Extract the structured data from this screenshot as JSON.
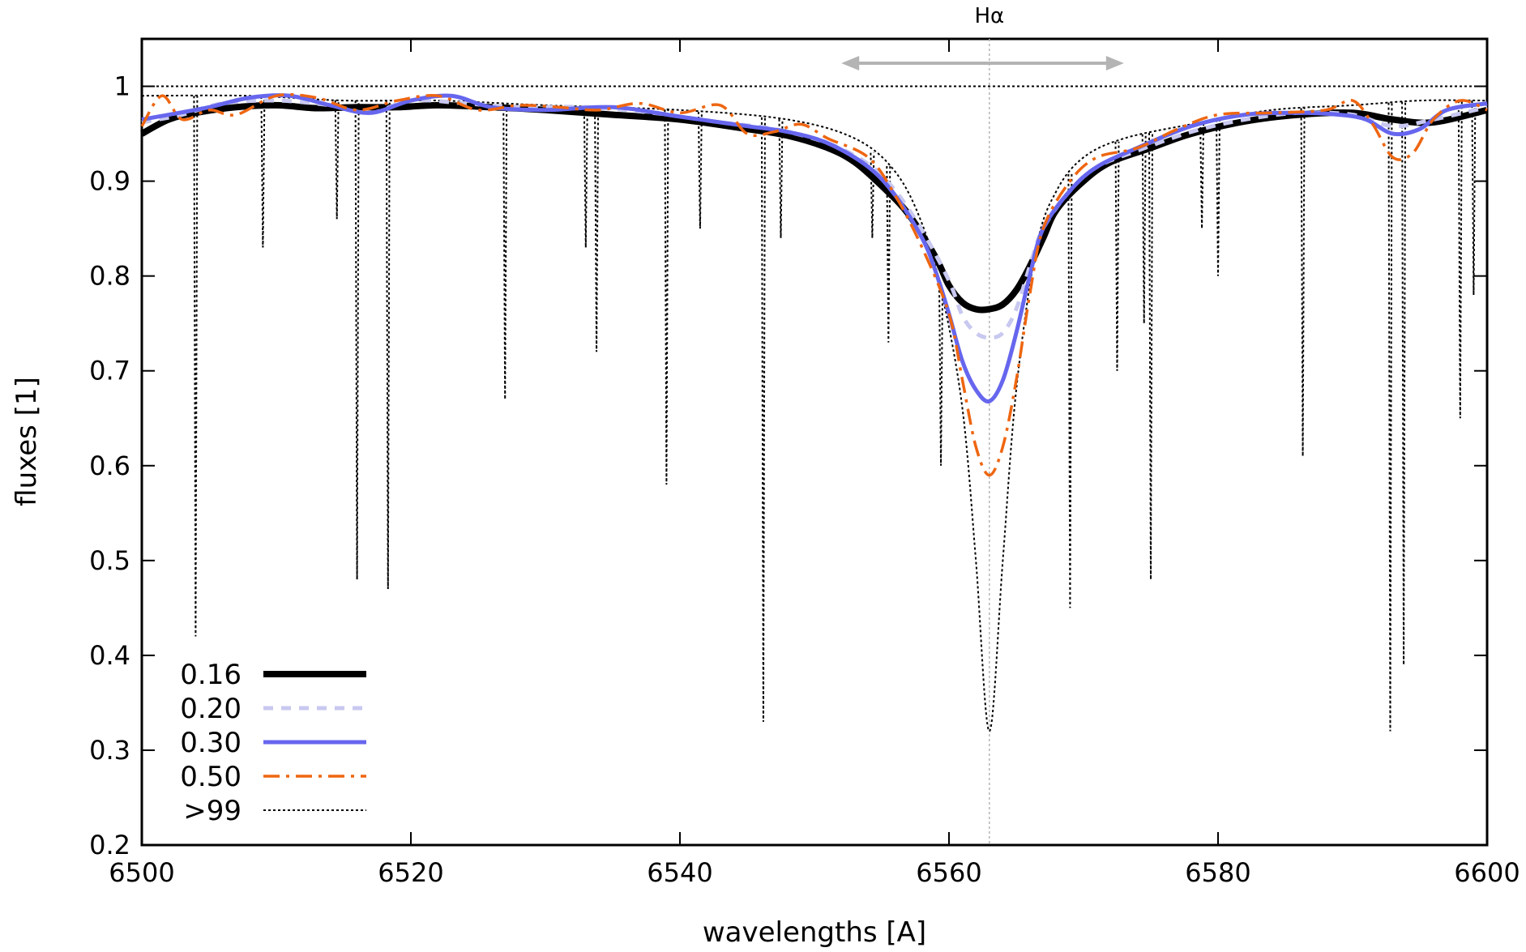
{
  "chart_data": {
    "type": "line",
    "xlabel": "wavelengths [A]",
    "ylabel": "fluxes [1]",
    "xlim": [
      6500,
      6600
    ],
    "ylim": [
      0.2,
      1.05
    ],
    "x_ticks": [
      6500,
      6520,
      6540,
      6560,
      6580,
      6600
    ],
    "x_tick_labels": [
      "6500",
      "6520",
      "6540",
      "6560",
      "6580",
      "6600"
    ],
    "y_ticks": [
      0.2,
      0.3,
      0.4,
      0.5,
      0.6,
      0.7,
      0.8,
      0.9,
      1.0
    ],
    "y_tick_labels": [
      "0.2",
      "0.3",
      "0.4",
      "0.5",
      "0.6",
      "0.7",
      "0.8",
      "0.9",
      "1"
    ],
    "grid": false,
    "legend_position": "bottom-left",
    "annotation": {
      "label": "Hα",
      "line_x": 6563,
      "arrow_from": 6552,
      "arrow_to": 6573
    },
    "series": [
      {
        "name": "0.16",
        "color": "#000000",
        "style": "solid-thick",
        "x": [
          6500,
          6502,
          6504,
          6507,
          6510,
          6513,
          6516,
          6519,
          6522,
          6526,
          6530,
          6535,
          6540,
          6545,
          6548,
          6551,
          6553,
          6555,
          6557,
          6559,
          6560,
          6561,
          6562,
          6563,
          6564,
          6565,
          6566,
          6567,
          6568,
          6570,
          6572,
          6575,
          6578,
          6582,
          6586,
          6590,
          6593,
          6596,
          6600
        ],
        "y": [
          0.95,
          0.965,
          0.972,
          0.978,
          0.98,
          0.977,
          0.978,
          0.978,
          0.98,
          0.978,
          0.975,
          0.97,
          0.965,
          0.955,
          0.948,
          0.935,
          0.92,
          0.895,
          0.865,
          0.82,
          0.79,
          0.772,
          0.765,
          0.765,
          0.77,
          0.785,
          0.81,
          0.84,
          0.87,
          0.9,
          0.92,
          0.935,
          0.95,
          0.963,
          0.97,
          0.972,
          0.965,
          0.962,
          0.975
        ]
      },
      {
        "name": "0.20",
        "color": "#c8c8f0",
        "style": "dashed",
        "x": [
          6500,
          6503,
          6506,
          6510,
          6514,
          6517,
          6520,
          6524,
          6528,
          6533,
          6538,
          6543,
          6547,
          6551,
          6554,
          6556,
          6558,
          6560,
          6561,
          6562,
          6563,
          6564,
          6565,
          6566,
          6567,
          6569,
          6571,
          6574,
          6578,
          6582,
          6586,
          6590,
          6593,
          6596,
          6600
        ],
        "y": [
          0.962,
          0.97,
          0.982,
          0.985,
          0.98,
          0.972,
          0.985,
          0.982,
          0.978,
          0.978,
          0.972,
          0.962,
          0.955,
          0.94,
          0.918,
          0.89,
          0.848,
          0.795,
          0.758,
          0.74,
          0.735,
          0.74,
          0.765,
          0.81,
          0.85,
          0.89,
          0.915,
          0.932,
          0.952,
          0.965,
          0.972,
          0.97,
          0.958,
          0.965,
          0.978
        ]
      },
      {
        "name": "0.30",
        "color": "#6666ee",
        "style": "solid",
        "x": [
          6500,
          6502,
          6505,
          6508,
          6511,
          6514,
          6517,
          6520,
          6523,
          6526,
          6530,
          6535,
          6540,
          6545,
          6548,
          6551,
          6554,
          6556,
          6558,
          6559,
          6560,
          6561,
          6562,
          6563,
          6564,
          6565,
          6566,
          6567,
          6569,
          6571,
          6574,
          6578,
          6582,
          6586,
          6589,
          6591,
          6593,
          6595,
          6597,
          6600
        ],
        "y": [
          0.965,
          0.97,
          0.978,
          0.988,
          0.99,
          0.98,
          0.972,
          0.985,
          0.99,
          0.978,
          0.975,
          0.978,
          0.968,
          0.958,
          0.952,
          0.94,
          0.915,
          0.885,
          0.84,
          0.805,
          0.76,
          0.71,
          0.68,
          0.668,
          0.69,
          0.74,
          0.8,
          0.85,
          0.89,
          0.915,
          0.935,
          0.958,
          0.97,
          0.972,
          0.97,
          0.965,
          0.95,
          0.955,
          0.975,
          0.982
        ]
      },
      {
        "name": "0.50",
        "color": "#ee6611",
        "style": "dash-dot",
        "x": [
          6500,
          6501.5,
          6503,
          6505,
          6507,
          6510,
          6513,
          6516,
          6519,
          6522,
          6525,
          6528,
          6531,
          6534,
          6537,
          6540,
          6543,
          6545,
          6547,
          6549,
          6551,
          6554,
          6556,
          6558,
          6560,
          6561,
          6562,
          6563,
          6564,
          6565,
          6566,
          6567,
          6569,
          6571,
          6574,
          6577,
          6580,
          6584,
          6588,
          6590,
          6591.5,
          6593,
          6594.5,
          6596,
          6598,
          6600
        ],
        "y": [
          0.958,
          0.99,
          0.965,
          0.975,
          0.97,
          0.99,
          0.988,
          0.975,
          0.985,
          0.99,
          0.975,
          0.98,
          0.978,
          0.975,
          0.982,
          0.972,
          0.98,
          0.95,
          0.952,
          0.96,
          0.945,
          0.925,
          0.885,
          0.83,
          0.76,
          0.69,
          0.62,
          0.59,
          0.62,
          0.69,
          0.78,
          0.85,
          0.9,
          0.925,
          0.935,
          0.955,
          0.97,
          0.972,
          0.975,
          0.985,
          0.96,
          0.925,
          0.93,
          0.965,
          0.985,
          0.975
        ]
      },
      {
        "name": ">99",
        "color": "#000000",
        "style": "dotted",
        "continuum_x": [
          6500,
          6508,
          6515,
          6522,
          6530,
          6540,
          6548,
          6553,
          6556,
          6558,
          6559.5,
          6561,
          6562,
          6563,
          6564,
          6565,
          6566.5,
          6568,
          6570,
          6573,
          6578,
          6584,
          6590,
          6595,
          6600
        ],
        "continuum_y": [
          0.99,
          0.99,
          0.985,
          0.985,
          0.98,
          0.975,
          0.965,
          0.945,
          0.91,
          0.855,
          0.78,
          0.66,
          0.5,
          0.32,
          0.5,
          0.68,
          0.83,
          0.89,
          0.925,
          0.945,
          0.96,
          0.975,
          0.98,
          0.985,
          0.985
        ],
        "absorption_lines": [
          {
            "x": 6504.0,
            "y": 0.42
          },
          {
            "x": 6509.0,
            "y": 0.83
          },
          {
            "x": 6514.5,
            "y": 0.86
          },
          {
            "x": 6516.0,
            "y": 0.48
          },
          {
            "x": 6518.3,
            "y": 0.47
          },
          {
            "x": 6527.0,
            "y": 0.67
          },
          {
            "x": 6533.0,
            "y": 0.83
          },
          {
            "x": 6533.8,
            "y": 0.72
          },
          {
            "x": 6539.0,
            "y": 0.58
          },
          {
            "x": 6541.5,
            "y": 0.85
          },
          {
            "x": 6546.2,
            "y": 0.33
          },
          {
            "x": 6547.5,
            "y": 0.84
          },
          {
            "x": 6554.3,
            "y": 0.84
          },
          {
            "x": 6555.5,
            "y": 0.73
          },
          {
            "x": 6559.4,
            "y": 0.6
          },
          {
            "x": 6569.0,
            "y": 0.45
          },
          {
            "x": 6572.5,
            "y": 0.7
          },
          {
            "x": 6574.5,
            "y": 0.75
          },
          {
            "x": 6575.0,
            "y": 0.48
          },
          {
            "x": 6578.8,
            "y": 0.85
          },
          {
            "x": 6580.0,
            "y": 0.8
          },
          {
            "x": 6586.3,
            "y": 0.61
          },
          {
            "x": 6592.8,
            "y": 0.32
          },
          {
            "x": 6593.8,
            "y": 0.39
          },
          {
            "x": 6598.0,
            "y": 0.65
          },
          {
            "x": 6599.0,
            "y": 0.78
          }
        ]
      }
    ]
  }
}
